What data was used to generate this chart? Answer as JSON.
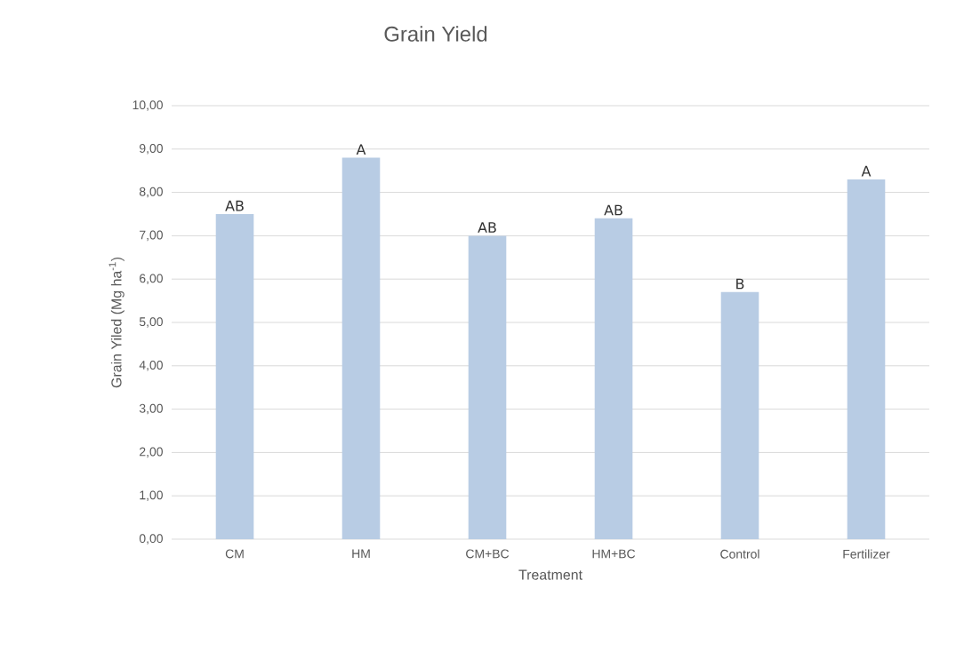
{
  "chart_data": {
    "type": "bar",
    "title": "Grain Yield",
    "xlabel": "Treatment",
    "ylabel": "Grain Yiled (Mg ha$^{-1}$)",
    "categories": [
      "CM",
      "HM",
      "CM+BC",
      "HM+BC",
      "Control",
      "Fertilizer"
    ],
    "values": [
      7.5,
      8.8,
      7.0,
      7.4,
      5.7,
      8.3
    ],
    "color": "#b8cce4",
    "ylim": [
      0,
      10
    ],
    "yticks": [
      {
        "value": 0,
        "label": "0,00"
      },
      {
        "value": 1,
        "label": "1,00"
      },
      {
        "value": 2,
        "label": "2,00"
      },
      {
        "value": 3,
        "label": "3,00"
      },
      {
        "value": 4,
        "label": "4,00"
      },
      {
        "value": 5,
        "label": "5,00"
      },
      {
        "value": 6,
        "label": "6,00"
      },
      {
        "value": 7,
        "label": "7,00"
      },
      {
        "value": 8,
        "label": "8,00"
      },
      {
        "value": 9,
        "label": "9,00"
      },
      {
        "value": 10,
        "label": "10,00"
      }
    ],
    "grid": "y",
    "annotations": [
      "AB",
      "A",
      "AB",
      "AB",
      "B",
      "A"
    ]
  }
}
